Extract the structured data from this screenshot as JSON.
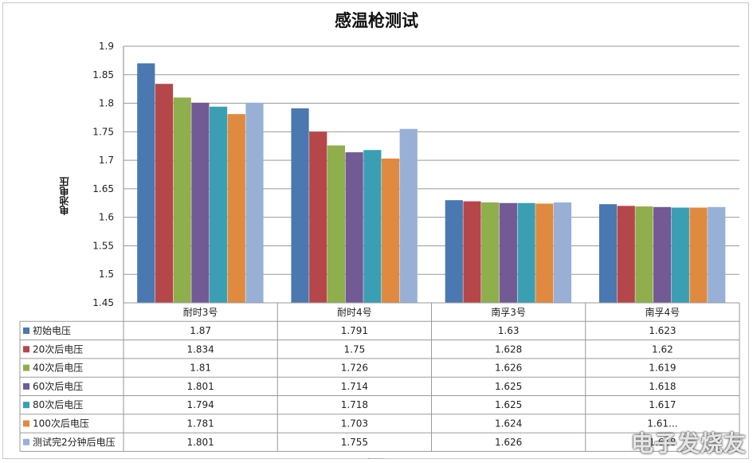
{
  "chart_data": {
    "type": "bar",
    "title": "感温枪测试",
    "ylabel": "电池电压",
    "xlabel": "",
    "ylim": [
      1.45,
      1.9
    ],
    "yticks": [
      1.45,
      1.5,
      1.55,
      1.6,
      1.65,
      1.7,
      1.75,
      1.8,
      1.85,
      1.9
    ],
    "grid": true,
    "legend": "data-table-left",
    "categories": [
      "耐时3号",
      "耐时4号",
      "南孚3号",
      "南孚4号"
    ],
    "series": [
      {
        "name": "初始电压",
        "color": "#4a78b0",
        "values": [
          1.87,
          1.791,
          1.63,
          1.623
        ]
      },
      {
        "name": "20次后电压",
        "color": "#b5474a",
        "values": [
          1.834,
          1.75,
          1.628,
          1.62
        ]
      },
      {
        "name": "40次后电压",
        "color": "#8fae4c",
        "values": [
          1.81,
          1.726,
          1.626,
          1.619
        ]
      },
      {
        "name": "60次后电压",
        "color": "#725a94",
        "values": [
          1.801,
          1.714,
          1.625,
          1.618
        ]
      },
      {
        "name": "80次后电压",
        "color": "#3b9fb4",
        "values": [
          1.794,
          1.718,
          1.625,
          1.617
        ]
      },
      {
        "name": "100次后电压",
        "color": "#e08a3f",
        "values": [
          1.781,
          1.703,
          1.624,
          1.617
        ]
      },
      {
        "name": "测试完2分钟后电压",
        "color": "#99b0d6",
        "values": [
          1.801,
          1.755,
          1.626,
          1.618
        ]
      }
    ],
    "table_text": [
      [
        "1.87",
        "1.791",
        "1.63",
        "1.623"
      ],
      [
        "1.834",
        "1.75",
        "1.628",
        "1.62"
      ],
      [
        "1.81",
        "1.726",
        "1.626",
        "1.619"
      ],
      [
        "1.801",
        "1.714",
        "1.625",
        "1.618"
      ],
      [
        "1.794",
        "1.718",
        "1.625",
        "1.617"
      ],
      [
        "1.781",
        "1.703",
        "1.624",
        "1.61..."
      ],
      [
        "1.801",
        "1.755",
        "1.626",
        "1.618"
      ]
    ]
  },
  "watermark": "电子发烧友"
}
